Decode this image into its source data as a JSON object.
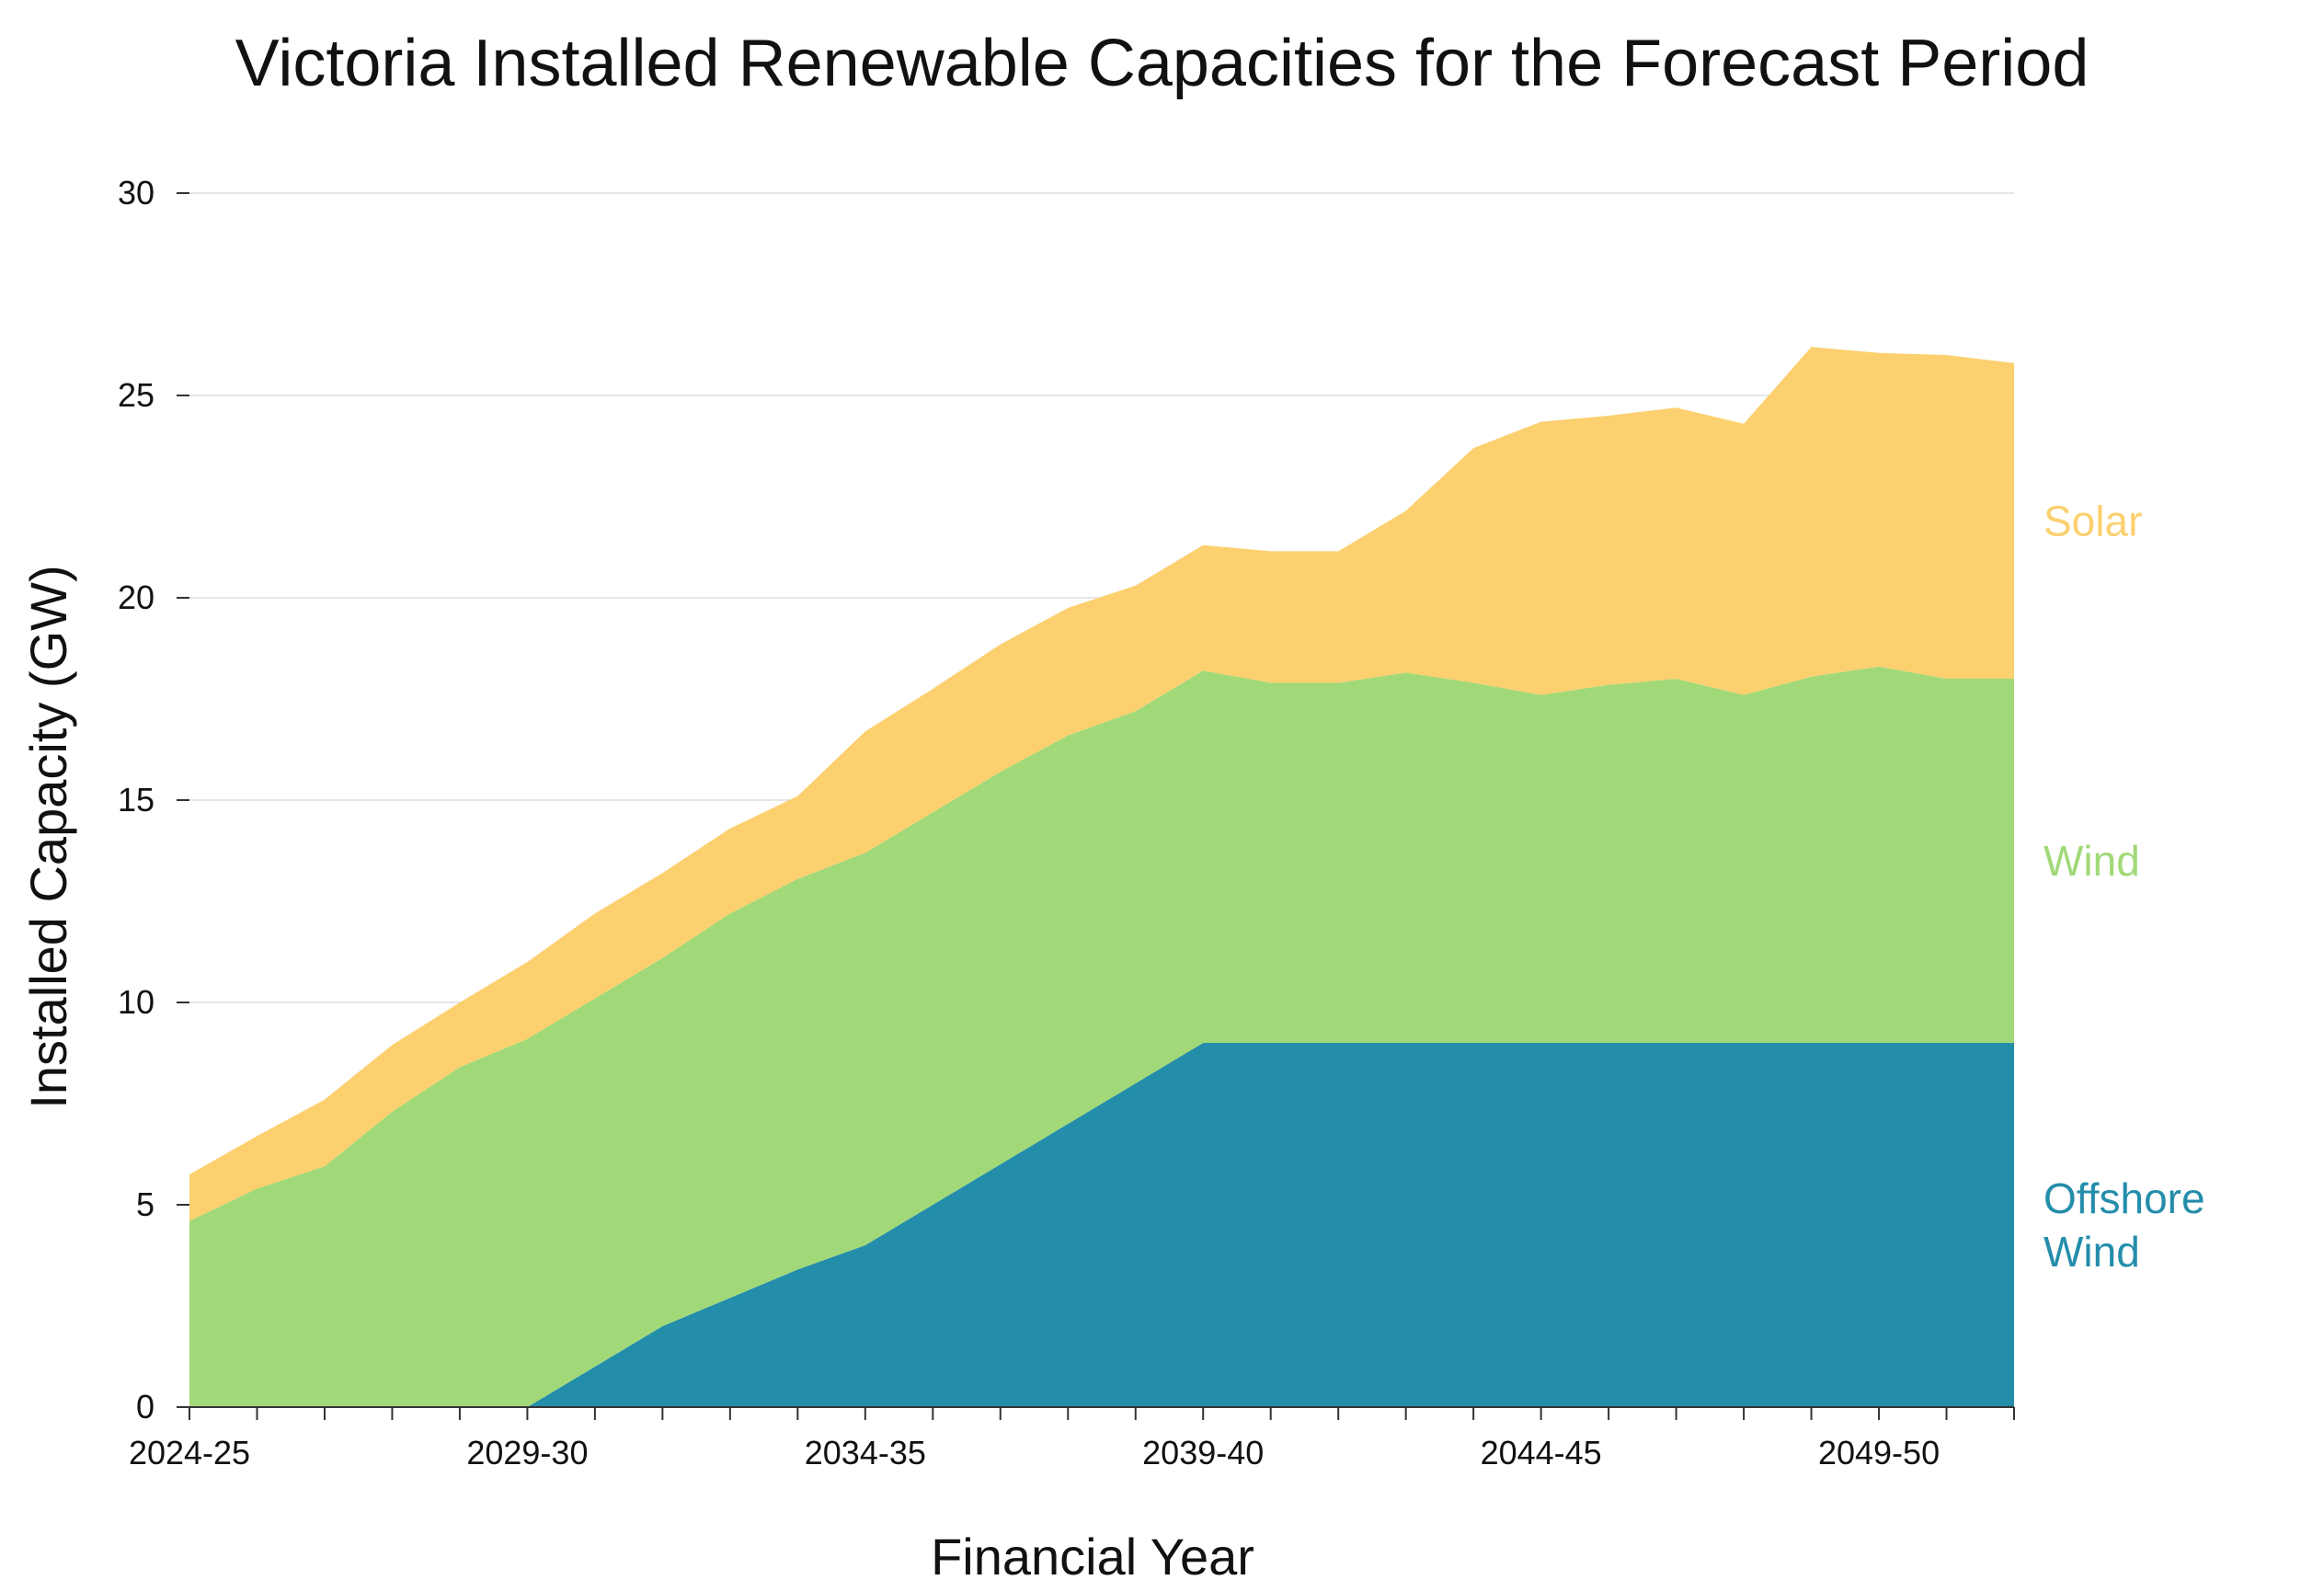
{
  "chart_data": {
    "type": "area",
    "stacked": true,
    "title": "Victoria Installed Renewable Capacities for the Forecast Period",
    "xlabel": "Financial Year",
    "ylabel": "Installed Capacity (GW)",
    "ylim": [
      0,
      30
    ],
    "yticks": [
      0,
      5,
      10,
      15,
      20,
      25,
      30
    ],
    "grid": "horizontal",
    "x": [
      "2024-25",
      "2025-26",
      "2026-27",
      "2027-28",
      "2028-29",
      "2029-30",
      "2030-31",
      "2031-32",
      "2032-33",
      "2033-34",
      "2034-35",
      "2035-36",
      "2036-37",
      "2037-38",
      "2038-39",
      "2039-40",
      "2040-41",
      "2041-42",
      "2042-43",
      "2043-44",
      "2044-45",
      "2045-46",
      "2046-47",
      "2047-48",
      "2048-49",
      "2049-50",
      "2050-51",
      "2051-52"
    ],
    "xtick_labels": [
      "2024-25",
      "2029-30",
      "2034-35",
      "2039-40",
      "2044-45",
      "2049-50"
    ],
    "xtick_label_indices": [
      0,
      5,
      10,
      15,
      20,
      25
    ],
    "series": [
      {
        "name": "Offshore Wind",
        "color": "#248DAA",
        "values": [
          0,
          0,
          0,
          0,
          0,
          0,
          1,
          2,
          2.7,
          3.4,
          4,
          5,
          6,
          7,
          8,
          9,
          9,
          9,
          9,
          9,
          9,
          9,
          9,
          9,
          9,
          9,
          9,
          9
        ]
      },
      {
        "name": "Wind",
        "color": "#A2D978",
        "values": [
          4.6,
          5.4,
          5.95,
          7.3,
          8.4,
          9.1,
          9.1,
          9.1,
          9.5,
          9.65,
          9.7,
          9.7,
          9.7,
          9.6,
          9.2,
          9.2,
          8.9,
          8.9,
          9.15,
          8.9,
          8.6,
          8.85,
          9,
          8.6,
          9.05,
          9.3,
          9,
          9
        ]
      },
      {
        "name": "Solar",
        "color": "#FCD06F",
        "values": [
          1.15,
          1.3,
          1.65,
          1.65,
          1.6,
          1.9,
          2.1,
          2.1,
          2.1,
          2.05,
          3.0,
          3.05,
          3.15,
          3.15,
          3.1,
          3.1,
          3.25,
          3.25,
          4.0,
          5.8,
          6.75,
          6.65,
          6.7,
          6.7,
          8.15,
          7.75,
          8.0,
          7.8
        ]
      }
    ],
    "series_labels": [
      {
        "series": "Solar",
        "lines": [
          "Solar"
        ],
        "color": "#FCD06F"
      },
      {
        "series": "Wind",
        "lines": [
          "Wind"
        ],
        "color": "#A2D978"
      },
      {
        "series": "Offshore Wind",
        "lines": [
          "Offshore",
          "Wind"
        ],
        "color": "#248DAA"
      }
    ]
  }
}
